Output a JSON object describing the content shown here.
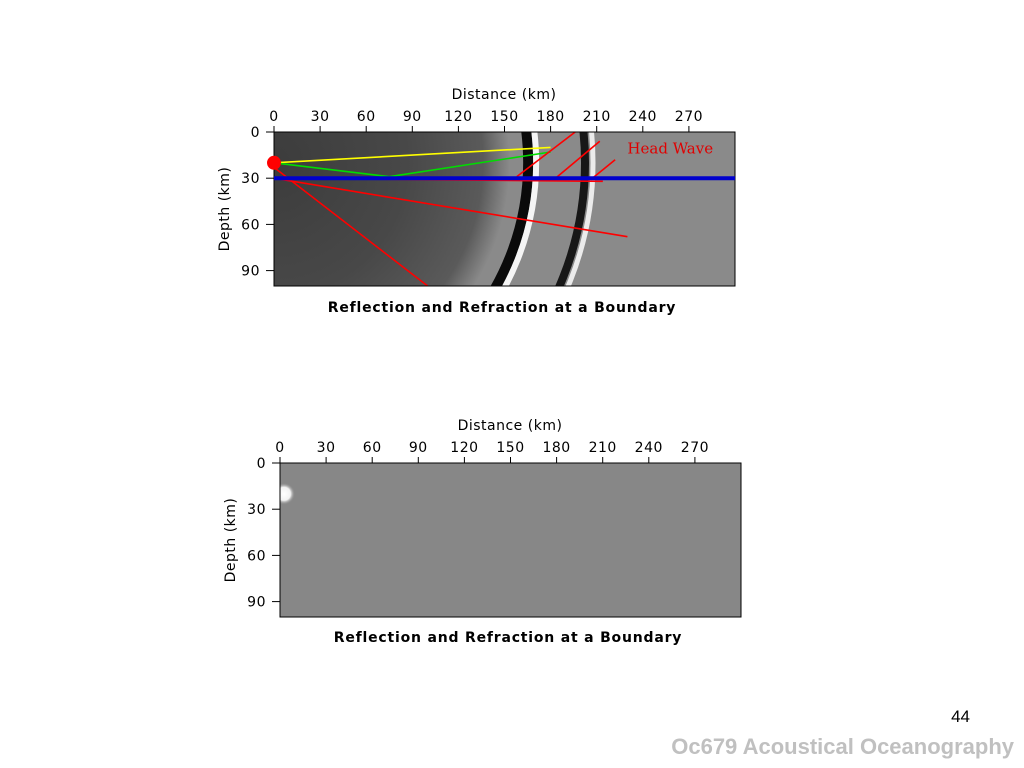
{
  "slide": {
    "page_number": "44",
    "footer": "Oc679 Acoustical Oceanography"
  },
  "chart_data": [
    {
      "type": "heatmap",
      "description_mode": "seismic wavefield snapshot",
      "title": "Reflection and Refraction at a Boundary",
      "xlabel": "Distance (km)",
      "ylabel": "Depth (km)",
      "xlim": [
        0,
        300
      ],
      "ylim": [
        0,
        100
      ],
      "y_inverted": true,
      "xticks": [
        "0",
        "30",
        "60",
        "90",
        "120",
        "150",
        "180",
        "210",
        "240",
        "270"
      ],
      "yticks": [
        "0",
        "30",
        "60",
        "90"
      ],
      "colormap": "grayscale",
      "source": {
        "x": 0,
        "y": 20,
        "color": "#ff0000"
      },
      "boundary": {
        "depth": 30,
        "color": "#0000cc"
      },
      "rays": [
        {
          "name": "direct",
          "color": "#ffff00",
          "points": [
            [
              0,
              20
            ],
            [
              180,
              10
            ]
          ]
        },
        {
          "name": "refracted",
          "color": "#00dd00",
          "points": [
            [
              0,
              20
            ],
            [
              75,
              29
            ],
            [
              180,
              13
            ]
          ]
        },
        {
          "name": "reflected",
          "color": "#ff0000",
          "points": [
            [
              0,
              30
            ],
            [
              230,
              68
            ]
          ]
        },
        {
          "name": "transmitted",
          "color": "#ff0000",
          "points": [
            [
              0,
              23
            ],
            [
              100,
              100
            ]
          ]
        },
        {
          "name": "critical",
          "color": "#ff0000",
          "points": [
            [
              0,
              30
            ],
            [
              214,
              32
            ]
          ]
        },
        {
          "name": "head-1",
          "color": "#ff0000",
          "points": [
            [
              158,
              29
            ],
            [
              196,
              0
            ]
          ]
        },
        {
          "name": "head-2",
          "color": "#ff0000",
          "points": [
            [
              182,
              31
            ],
            [
              212,
              6
            ]
          ]
        },
        {
          "name": "head-3",
          "color": "#ff0000",
          "points": [
            [
              206,
              31
            ],
            [
              222,
              18
            ]
          ]
        }
      ],
      "wavefronts": [
        {
          "name": "primary",
          "center": [
            0,
            20
          ],
          "radius": 168
        },
        {
          "name": "refracted-front",
          "center": [
            0,
            20
          ],
          "radius": 205
        }
      ],
      "annotations": [
        {
          "text": "Head Wave",
          "x": 230,
          "y": 14,
          "color": "#e00000"
        }
      ]
    },
    {
      "type": "heatmap",
      "description_mode": "seismic wavefield snapshot at initial time",
      "title": "Reflection and Refraction at a Boundary",
      "xlabel": "Distance (km)",
      "ylabel": "Depth (km)",
      "xlim": [
        0,
        300
      ],
      "ylim": [
        0,
        100
      ],
      "y_inverted": true,
      "xticks": [
        "0",
        "30",
        "60",
        "90",
        "120",
        "150",
        "180",
        "210",
        "240",
        "270"
      ],
      "yticks": [
        "0",
        "30",
        "60",
        "90"
      ],
      "colormap": "grayscale",
      "source": {
        "x": 0,
        "y": 20,
        "color": "#ffffff"
      }
    }
  ]
}
